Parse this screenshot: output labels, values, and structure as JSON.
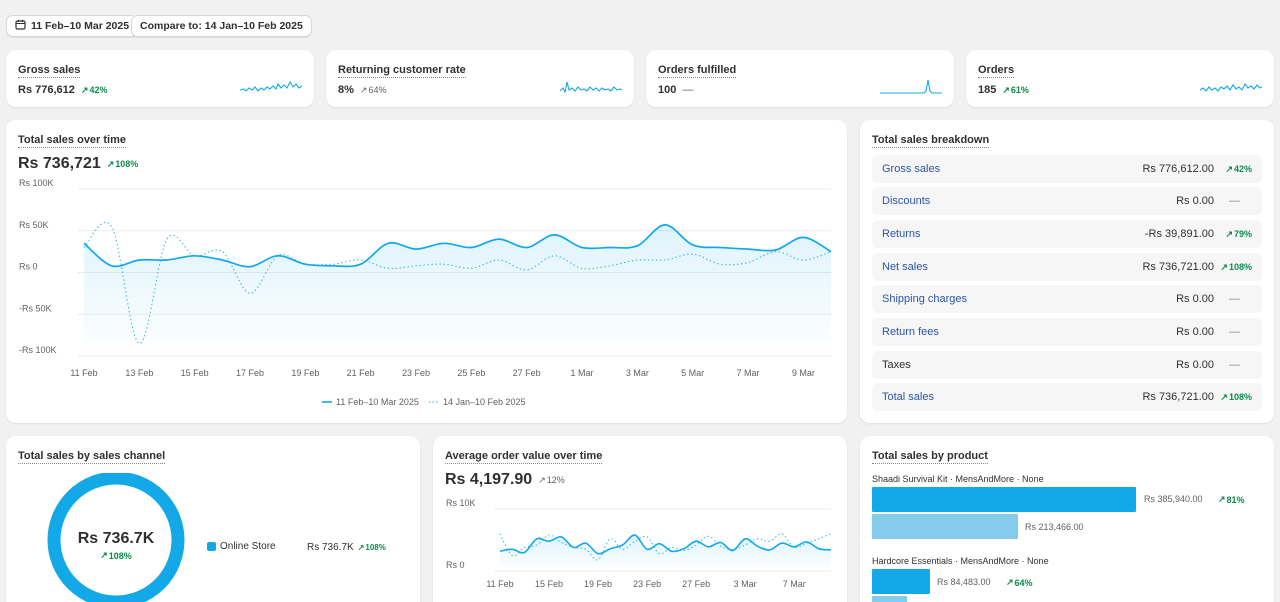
{
  "filters": {
    "date_range": "11 Feb–10 Mar 2025",
    "compare": "Compare to: 14 Jan–10 Feb 2025"
  },
  "metrics": [
    {
      "title": "Gross sales",
      "value": "Rs 776,612",
      "change": "42%"
    },
    {
      "title": "Returning customer rate",
      "value": "8%",
      "change": "64%"
    },
    {
      "title": "Orders fulfilled",
      "value": "100",
      "change": "—"
    },
    {
      "title": "Orders",
      "value": "185",
      "change": "61%"
    }
  ],
  "total_sales": {
    "title": "Total sales over time",
    "value": "Rs 736,721",
    "change": "108%",
    "legend_current": "11 Feb–10 Mar 2025",
    "legend_previous": "14 Jan–10 Feb 2025"
  },
  "breakdown": {
    "title": "Total sales breakdown",
    "rows": [
      {
        "label": "Gross sales",
        "amount": "Rs 776,612.00",
        "change": "42%"
      },
      {
        "label": "Discounts",
        "amount": "Rs 0.00",
        "change": "—"
      },
      {
        "label": "Returns",
        "amount": "-Rs 39,891.00",
        "change": "79%"
      },
      {
        "label": "Net sales",
        "amount": "Rs 736,721.00",
        "change": "108%"
      },
      {
        "label": "Shipping charges",
        "amount": "Rs 0.00",
        "change": "—"
      },
      {
        "label": "Return fees",
        "amount": "Rs 0.00",
        "change": "—"
      },
      {
        "label": "Taxes",
        "amount": "Rs 0.00",
        "change": "—"
      },
      {
        "label": "Total sales",
        "amount": "Rs 736,721.00",
        "change": "108%"
      }
    ]
  },
  "channel": {
    "title": "Total sales by sales channel",
    "center_value": "Rs 736.7K",
    "center_change": "108%",
    "legend_label": "Online Store",
    "legend_value": "Rs 736.7K",
    "legend_change": "108%"
  },
  "aov": {
    "title": "Average order value over time",
    "value": "Rs 4,197.90",
    "change": "12%"
  },
  "product": {
    "title": "Total sales by product",
    "items": [
      {
        "name": "Shaadi Survival Kit · MensAndMore · None",
        "current": "Rs 385,940.00",
        "change": "81%",
        "previous": "Rs 213,466.00"
      },
      {
        "name": "Hardcore Essentials · MensAndMore · None",
        "current": "Rs 84,483.00",
        "change": "64%",
        "previous": ""
      }
    ]
  },
  "colors": {
    "accent": "#13a8e8",
    "positive": "#0c8a4b"
  },
  "chart_data": [
    {
      "type": "line",
      "title": "Total sales over time",
      "x": [
        "11 Feb",
        "12 Feb",
        "13 Feb",
        "14 Feb",
        "15 Feb",
        "16 Feb",
        "17 Feb",
        "18 Feb",
        "19 Feb",
        "20 Feb",
        "21 Feb",
        "22 Feb",
        "23 Feb",
        "24 Feb",
        "25 Feb",
        "26 Feb",
        "27 Feb",
        "28 Feb",
        "1 Mar",
        "2 Mar",
        "3 Mar",
        "4 Mar",
        "5 Mar",
        "6 Mar",
        "7 Mar",
        "8 Mar",
        "9 Mar",
        "10 Mar"
      ],
      "xticks": [
        "11 Feb",
        "13 Feb",
        "15 Feb",
        "17 Feb",
        "19 Feb",
        "21 Feb",
        "23 Feb",
        "25 Feb",
        "27 Feb",
        "1 Mar",
        "3 Mar",
        "5 Mar",
        "7 Mar",
        "9 Mar"
      ],
      "yticks": [
        "Rs 100K",
        "Rs 50K",
        "Rs 0",
        "-Rs 50K",
        "-Rs 100K"
      ],
      "ylim": [
        -100000,
        100000
      ],
      "series": [
        {
          "name": "11 Feb–10 Mar 2025",
          "values": [
            35000,
            8000,
            15000,
            15000,
            20000,
            15000,
            7000,
            20000,
            10000,
            8000,
            10000,
            35000,
            28000,
            35000,
            30000,
            40000,
            30000,
            45000,
            30000,
            30000,
            32000,
            57000,
            33000,
            30000,
            28000,
            27000,
            42000,
            25000
          ]
        },
        {
          "name": "14 Jan–10 Feb 2025",
          "values": [
            30000,
            55000,
            -85000,
            40000,
            20000,
            25000,
            -25000,
            20000,
            10000,
            10000,
            15000,
            5000,
            8000,
            10000,
            5000,
            15000,
            3000,
            20000,
            5000,
            8000,
            15000,
            15000,
            22000,
            10000,
            12000,
            25000,
            15000,
            25000
          ]
        }
      ]
    },
    {
      "type": "line",
      "title": "Average order value over time",
      "x": [
        "11 Feb",
        "12 Feb",
        "13 Feb",
        "14 Feb",
        "15 Feb",
        "16 Feb",
        "17 Feb",
        "18 Feb",
        "19 Feb",
        "20 Feb",
        "21 Feb",
        "22 Feb",
        "23 Feb",
        "24 Feb",
        "25 Feb",
        "26 Feb",
        "27 Feb",
        "28 Feb",
        "1 Mar",
        "2 Mar",
        "3 Mar",
        "4 Mar",
        "5 Mar",
        "6 Mar",
        "7 Mar",
        "8 Mar",
        "9 Mar",
        "10 Mar"
      ],
      "xticks": [
        "11 Feb",
        "15 Feb",
        "19 Feb",
        "23 Feb",
        "27 Feb",
        "3 Mar",
        "7 Mar"
      ],
      "yticks": [
        "Rs 10K",
        "Rs 0"
      ],
      "ylim": [
        0,
        10000
      ],
      "series": [
        {
          "name": "11 Feb–10 Mar 2025",
          "values": [
            3200,
            3500,
            3000,
            5200,
            4800,
            5500,
            3800,
            4500,
            2800,
            3600,
            4200,
            5800,
            3500,
            4400,
            3200,
            3600,
            4800,
            3900,
            4600,
            3300,
            5200,
            4000,
            3400,
            4500,
            3900,
            4700,
            3600,
            3400
          ]
        },
        {
          "name": "14 Jan–10 Feb 2025",
          "values": [
            6000,
            2500,
            3800,
            4200,
            5800,
            4600,
            3800,
            3500,
            1800,
            5200,
            3500,
            4800,
            5500,
            2800,
            3800,
            3300,
            4200,
            5600,
            4000,
            3500,
            4200,
            5200,
            4800,
            6000,
            3800,
            4500,
            5200,
            6000
          ]
        }
      ]
    }
  ]
}
